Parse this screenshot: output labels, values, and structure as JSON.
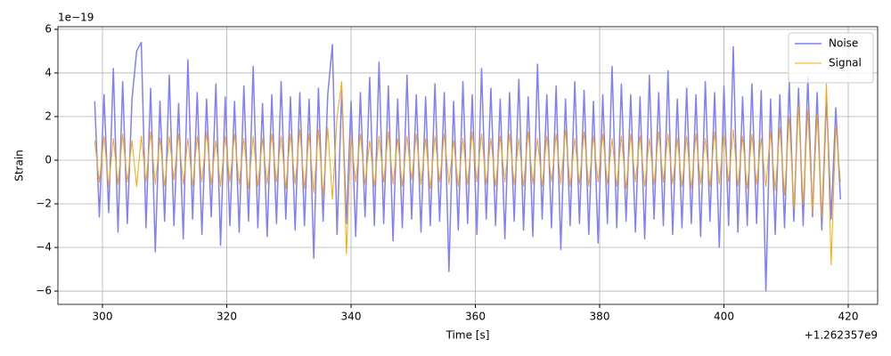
{
  "chart_data": {
    "type": "line",
    "xlabel": "Time [s]",
    "ylabel": "Strain",
    "x_offset_text": "+1.262357e9",
    "y_offset_text": "1e−19",
    "x": [
      298.75,
      299.5,
      300.25,
      301,
      301.75,
      302.5,
      303.25,
      304,
      304.75,
      305.5,
      306.25,
      307,
      307.75,
      308.5,
      309.25,
      310,
      310.75,
      311.5,
      312.25,
      313,
      313.75,
      314.5,
      315.25,
      316,
      316.75,
      317.5,
      318.25,
      319,
      319.75,
      320.5,
      321.25,
      322,
      322.75,
      323.5,
      324.25,
      325,
      325.75,
      326.5,
      327.25,
      328,
      328.75,
      329.5,
      330.25,
      331,
      331.75,
      332.5,
      333.25,
      334,
      334.75,
      335.5,
      336.25,
      337,
      337.75,
      338.5,
      339.25,
      340,
      340.75,
      341.5,
      342.25,
      343,
      343.75,
      344.5,
      345.25,
      346,
      346.75,
      347.5,
      348.25,
      349,
      349.75,
      350.5,
      351.25,
      352,
      352.75,
      353.5,
      354.25,
      355,
      355.75,
      356.5,
      357.25,
      358,
      358.75,
      359.5,
      360.25,
      361,
      361.75,
      362.5,
      363.25,
      364,
      364.75,
      365.5,
      366.25,
      367,
      367.75,
      368.5,
      369.25,
      370,
      370.75,
      371.5,
      372.25,
      373,
      373.75,
      374.5,
      375.25,
      376,
      376.75,
      377.5,
      378.25,
      379,
      379.75,
      380.5,
      381.25,
      382,
      382.75,
      383.5,
      384.25,
      385,
      385.75,
      386.5,
      387.25,
      388,
      388.75,
      389.5,
      390.25,
      391,
      391.75,
      392.5,
      393.25,
      394,
      394.75,
      395.5,
      396.25,
      397,
      397.75,
      398.5,
      399.25,
      400,
      400.75,
      401.5,
      402.25,
      403,
      403.75,
      404.5,
      405.25,
      406,
      406.75,
      407.5,
      408.25,
      409,
      409.75,
      410.5,
      411.25,
      412,
      412.75,
      413.5,
      414.25,
      415,
      415.75,
      416.5,
      417.25,
      418,
      418.75
    ],
    "series": [
      {
        "name": "Noise",
        "color": "#7f7fff",
        "values": [
          2.7,
          -2.6,
          3.0,
          -2.4,
          4.2,
          -3.3,
          3.6,
          -2.9,
          2.8,
          5.0,
          5.4,
          -3.1,
          3.3,
          -4.2,
          2.7,
          -2.8,
          3.9,
          -3.0,
          2.6,
          -3.6,
          4.6,
          -2.7,
          3.1,
          -3.4,
          2.8,
          -2.6,
          3.5,
          -3.9,
          2.9,
          -3.0,
          2.7,
          -3.3,
          3.4,
          -2.8,
          4.3,
          -3.1,
          2.6,
          -3.5,
          3.0,
          -2.9,
          3.6,
          -2.7,
          2.9,
          -3.2,
          3.1,
          -3.0,
          2.8,
          -4.5,
          3.3,
          -2.8,
          3.0,
          5.3,
          -3.4,
          3.2,
          -2.9,
          2.7,
          -3.5,
          3.1,
          -2.6,
          3.8,
          -3.0,
          4.5,
          -2.9,
          3.4,
          -3.7,
          2.8,
          -3.1,
          3.9,
          -2.7,
          3.0,
          -3.3,
          2.9,
          -3.0,
          3.5,
          -2.8,
          3.1,
          -5.1,
          2.7,
          -3.2,
          3.6,
          -2.9,
          3.0,
          -3.4,
          4.2,
          -2.7,
          3.3,
          -3.0,
          2.8,
          -3.6,
          3.1,
          -2.8,
          3.7,
          -3.2,
          2.9,
          -3.5,
          4.4,
          -2.7,
          3.0,
          -3.1,
          3.4,
          -4.1,
          2.8,
          -3.0,
          3.6,
          -2.9,
          3.2,
          -3.4,
          2.7,
          -3.8,
          3.0,
          -2.9,
          4.3,
          -3.1,
          3.5,
          -2.8,
          3.0,
          -3.3,
          2.9,
          -3.6,
          3.9,
          -2.7,
          3.1,
          -3.0,
          4.1,
          -3.4,
          2.8,
          -3.1,
          3.3,
          -2.9,
          3.0,
          -3.5,
          3.6,
          -2.8,
          3.1,
          -4.0,
          3.4,
          -3.0,
          5.2,
          -3.3,
          2.9,
          -3.0,
          3.5,
          -2.9,
          3.2,
          -6.0,
          2.8,
          -3.4,
          3.0,
          -3.1,
          3.6,
          -2.8,
          3.3,
          -3.0,
          3.8,
          -2.6,
          3.1,
          -3.2,
          2.9,
          -2.7,
          2.4,
          -1.8
        ]
      },
      {
        "name": "Signal",
        "color": "#ffa500",
        "values": [
          0.9,
          -1.0,
          1.1,
          -1.2,
          1.0,
          -1.1,
          1.2,
          -1.0,
          0.9,
          -1.2,
          1.1,
          -1.0,
          1.3,
          -1.1,
          1.0,
          -1.2,
          1.1,
          -0.9,
          1.2,
          -1.1,
          1.0,
          -1.2,
          1.1,
          -1.0,
          1.3,
          -1.1,
          0.9,
          -1.2,
          1.1,
          -1.0,
          1.2,
          -1.1,
          1.0,
          -1.3,
          1.1,
          -1.2,
          1.0,
          -1.1,
          1.2,
          -1.0,
          1.1,
          -1.3,
          1.2,
          -1.1,
          1.4,
          -1.3,
          1.2,
          -1.5,
          1.4,
          -1.6,
          1.5,
          -1.8,
          2.0,
          3.6,
          -4.3,
          1.1,
          -1.0,
          1.2,
          -1.1,
          0.9,
          -1.2,
          1.1,
          -1.0,
          1.3,
          -1.1,
          1.0,
          -1.2,
          1.1,
          -0.9,
          1.2,
          -1.1,
          1.0,
          -1.3,
          1.1,
          -1.0,
          1.2,
          -1.1,
          0.9,
          -1.2,
          1.0,
          -1.1,
          1.3,
          -1.0,
          1.2,
          -1.1,
          1.0,
          -1.2,
          1.1,
          -1.0,
          1.2,
          -1.1,
          1.0,
          -1.2,
          1.3,
          -1.1,
          1.0,
          -1.2,
          1.1,
          -1.0,
          1.2,
          -1.1,
          1.4,
          -1.2,
          1.0,
          -1.1,
          1.3,
          -1.2,
          1.1,
          -1.0,
          1.2,
          -1.1,
          1.0,
          -1.2,
          1.1,
          -1.3,
          1.2,
          -1.0,
          1.1,
          -1.2,
          1.0,
          -1.1,
          1.3,
          -1.0,
          1.2,
          -1.1,
          1.0,
          -1.2,
          1.1,
          -1.3,
          1.2,
          -1.1,
          1.0,
          -1.2,
          1.3,
          -1.1,
          1.2,
          -1.0,
          1.4,
          -1.2,
          1.1,
          -1.3,
          1.2,
          -1.1,
          1.0,
          -1.2,
          1.3,
          -1.4,
          1.5,
          -1.6,
          2.0,
          -2.2,
          2.5,
          -2.0,
          2.3,
          -2.4,
          2.1,
          -2.6,
          3.5,
          -4.8,
          1.6,
          -1.0
        ]
      }
    ],
    "xlim": [
      292.83,
      424.73
    ],
    "ylim": [
      -6.61,
      6.12
    ],
    "xticks": [
      300,
      320,
      340,
      360,
      380,
      400,
      420
    ],
    "yticks": [
      {
        "value": -6,
        "label": "−6"
      },
      {
        "value": -4,
        "label": "−4"
      },
      {
        "value": -2,
        "label": "−2"
      },
      0,
      2,
      4,
      6
    ],
    "grid": true,
    "legend": "upper right"
  }
}
